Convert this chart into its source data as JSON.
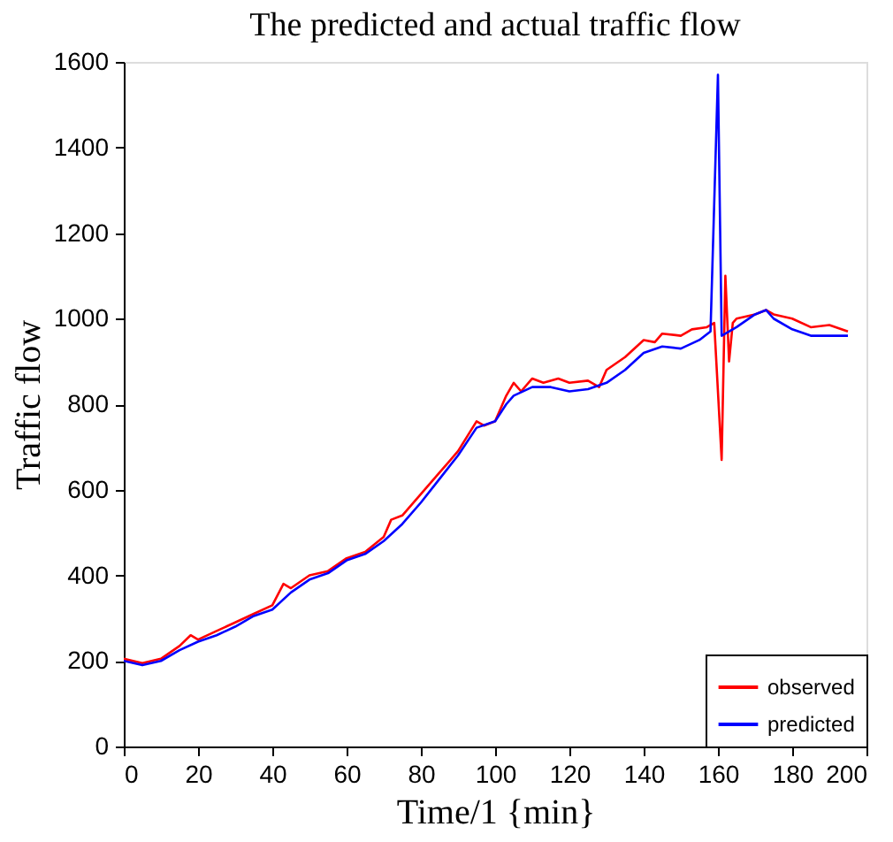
{
  "chart_data": {
    "type": "line",
    "title": "The predicted and actual traffic flow",
    "xlabel": "Time/1 {min}",
    "ylabel": "Traffic flow",
    "xlim": [
      0,
      200
    ],
    "xticks": [
      0,
      20,
      40,
      60,
      80,
      100,
      120,
      140,
      160,
      180,
      200
    ],
    "ylim": [
      0,
      1600
    ],
    "yticks": [
      0,
      200,
      400,
      600,
      800,
      1000,
      1200,
      1400,
      1600
    ],
    "grid": false,
    "legend": "bottom right",
    "marker": "none",
    "line_style": "solid",
    "series": [
      {
        "name": "observed",
        "color": "#ff0000",
        "x": [
          0,
          5,
          10,
          15,
          18,
          20,
          25,
          30,
          35,
          40,
          43,
          45,
          50,
          55,
          60,
          65,
          70,
          72,
          75,
          80,
          85,
          90,
          95,
          97,
          100,
          103,
          105,
          107,
          110,
          113,
          117,
          120,
          125,
          128,
          130,
          135,
          140,
          143,
          145,
          150,
          153,
          157,
          159,
          161,
          162,
          163,
          164,
          165,
          170,
          173,
          175,
          180,
          185,
          190,
          195
        ],
        "values": [
          205,
          195,
          205,
          235,
          260,
          250,
          270,
          290,
          310,
          330,
          380,
          370,
          400,
          410,
          440,
          455,
          490,
          530,
          540,
          590,
          640,
          690,
          760,
          750,
          760,
          820,
          850,
          830,
          860,
          850,
          860,
          850,
          855,
          840,
          880,
          910,
          950,
          945,
          965,
          960,
          975,
          980,
          990,
          670,
          1100,
          900,
          990,
          1000,
          1010,
          1020,
          1010,
          1000,
          980,
          985,
          970
        ]
      },
      {
        "name": "predicted",
        "color": "#0000ff",
        "x": [
          0,
          5,
          10,
          15,
          20,
          25,
          30,
          35,
          40,
          45,
          50,
          55,
          60,
          65,
          70,
          75,
          80,
          85,
          90,
          95,
          100,
          103,
          105,
          110,
          115,
          120,
          125,
          130,
          135,
          140,
          145,
          150,
          155,
          158,
          160,
          161,
          165,
          170,
          173,
          175,
          180,
          185,
          190,
          195
        ],
        "values": [
          200,
          190,
          200,
          225,
          245,
          260,
          280,
          305,
          320,
          360,
          390,
          405,
          435,
          450,
          480,
          520,
          570,
          625,
          680,
          745,
          760,
          800,
          820,
          840,
          840,
          830,
          835,
          850,
          880,
          920,
          935,
          930,
          950,
          970,
          1570,
          960,
          980,
          1010,
          1020,
          1000,
          975,
          960,
          960,
          960
        ]
      }
    ]
  }
}
